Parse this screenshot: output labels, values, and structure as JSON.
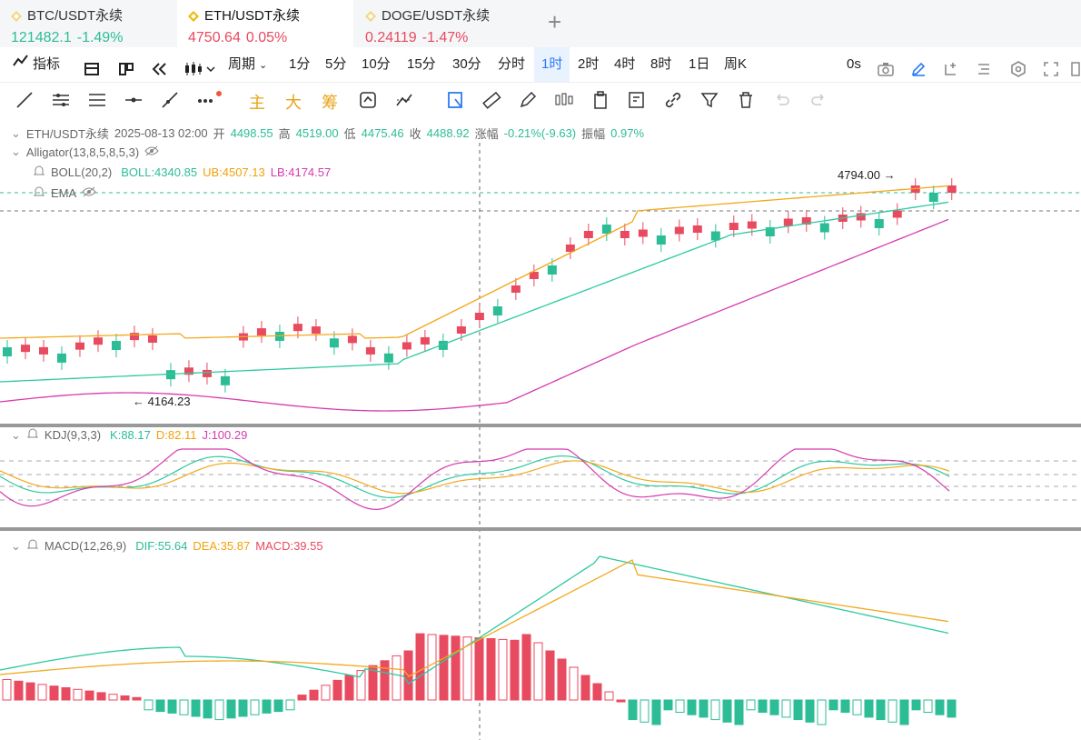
{
  "tabs": [
    {
      "symbol": "BTC/USDT永续",
      "price": "121482.1",
      "change": "-1.49%"
    },
    {
      "symbol": "ETH/USDT永续",
      "price": "4750.64",
      "change": "0.05%"
    },
    {
      "symbol": "DOGE/USDT永续",
      "price": "0.24119",
      "change": "-1.47%"
    }
  ],
  "toolbar": {
    "indicators": "指标",
    "period": "周期",
    "intervals": [
      "1分",
      "5分",
      "10分",
      "15分",
      "30分",
      "分时",
      "1时",
      "2时",
      "4时",
      "8时",
      "1日",
      "周K"
    ],
    "selected_interval": "1时",
    "countdown": "0s",
    "chips": [
      "主",
      "大",
      "筹"
    ]
  },
  "ohlc": {
    "symbol": "ETH/USDT永续",
    "time": "2025-08-13 02:00",
    "open_label": "开",
    "open": "4498.55",
    "high_label": "高",
    "high": "4519.00",
    "low_label": "低",
    "low": "4475.46",
    "close_label": "收",
    "close": "4488.92",
    "chg_label": "涨幅",
    "chg": "-0.21%(-9.63)",
    "amp_label": "振幅",
    "amp": "0.97%"
  },
  "indicators": {
    "alligator": "Alligator(13,8,5,8,5,3)",
    "boll": "BOLL(20,2)",
    "boll_mid": "BOLL:4340.85",
    "boll_ub": "UB:4507.13",
    "boll_lb": "LB:4174.57",
    "ema": "EMA",
    "kdj": "KDJ(9,3,3)",
    "kdj_k": "K:88.17",
    "kdj_d": "D:82.11",
    "kdj_j": "J:100.29",
    "macd": "MACD(12,26,9)",
    "macd_dif": "DIF:55.64",
    "macd_dea": "DEA:35.87",
    "macd_val": "MACD:39.55"
  },
  "markers": {
    "high": "4794.00",
    "low": "4164.23"
  },
  "colors": {
    "up": "#2dbd96",
    "down": "#e84a5f",
    "boll_mid": "#2dc9a0",
    "boll_ub": "#f2a81d",
    "boll_lb": "#d63ab0"
  }
}
